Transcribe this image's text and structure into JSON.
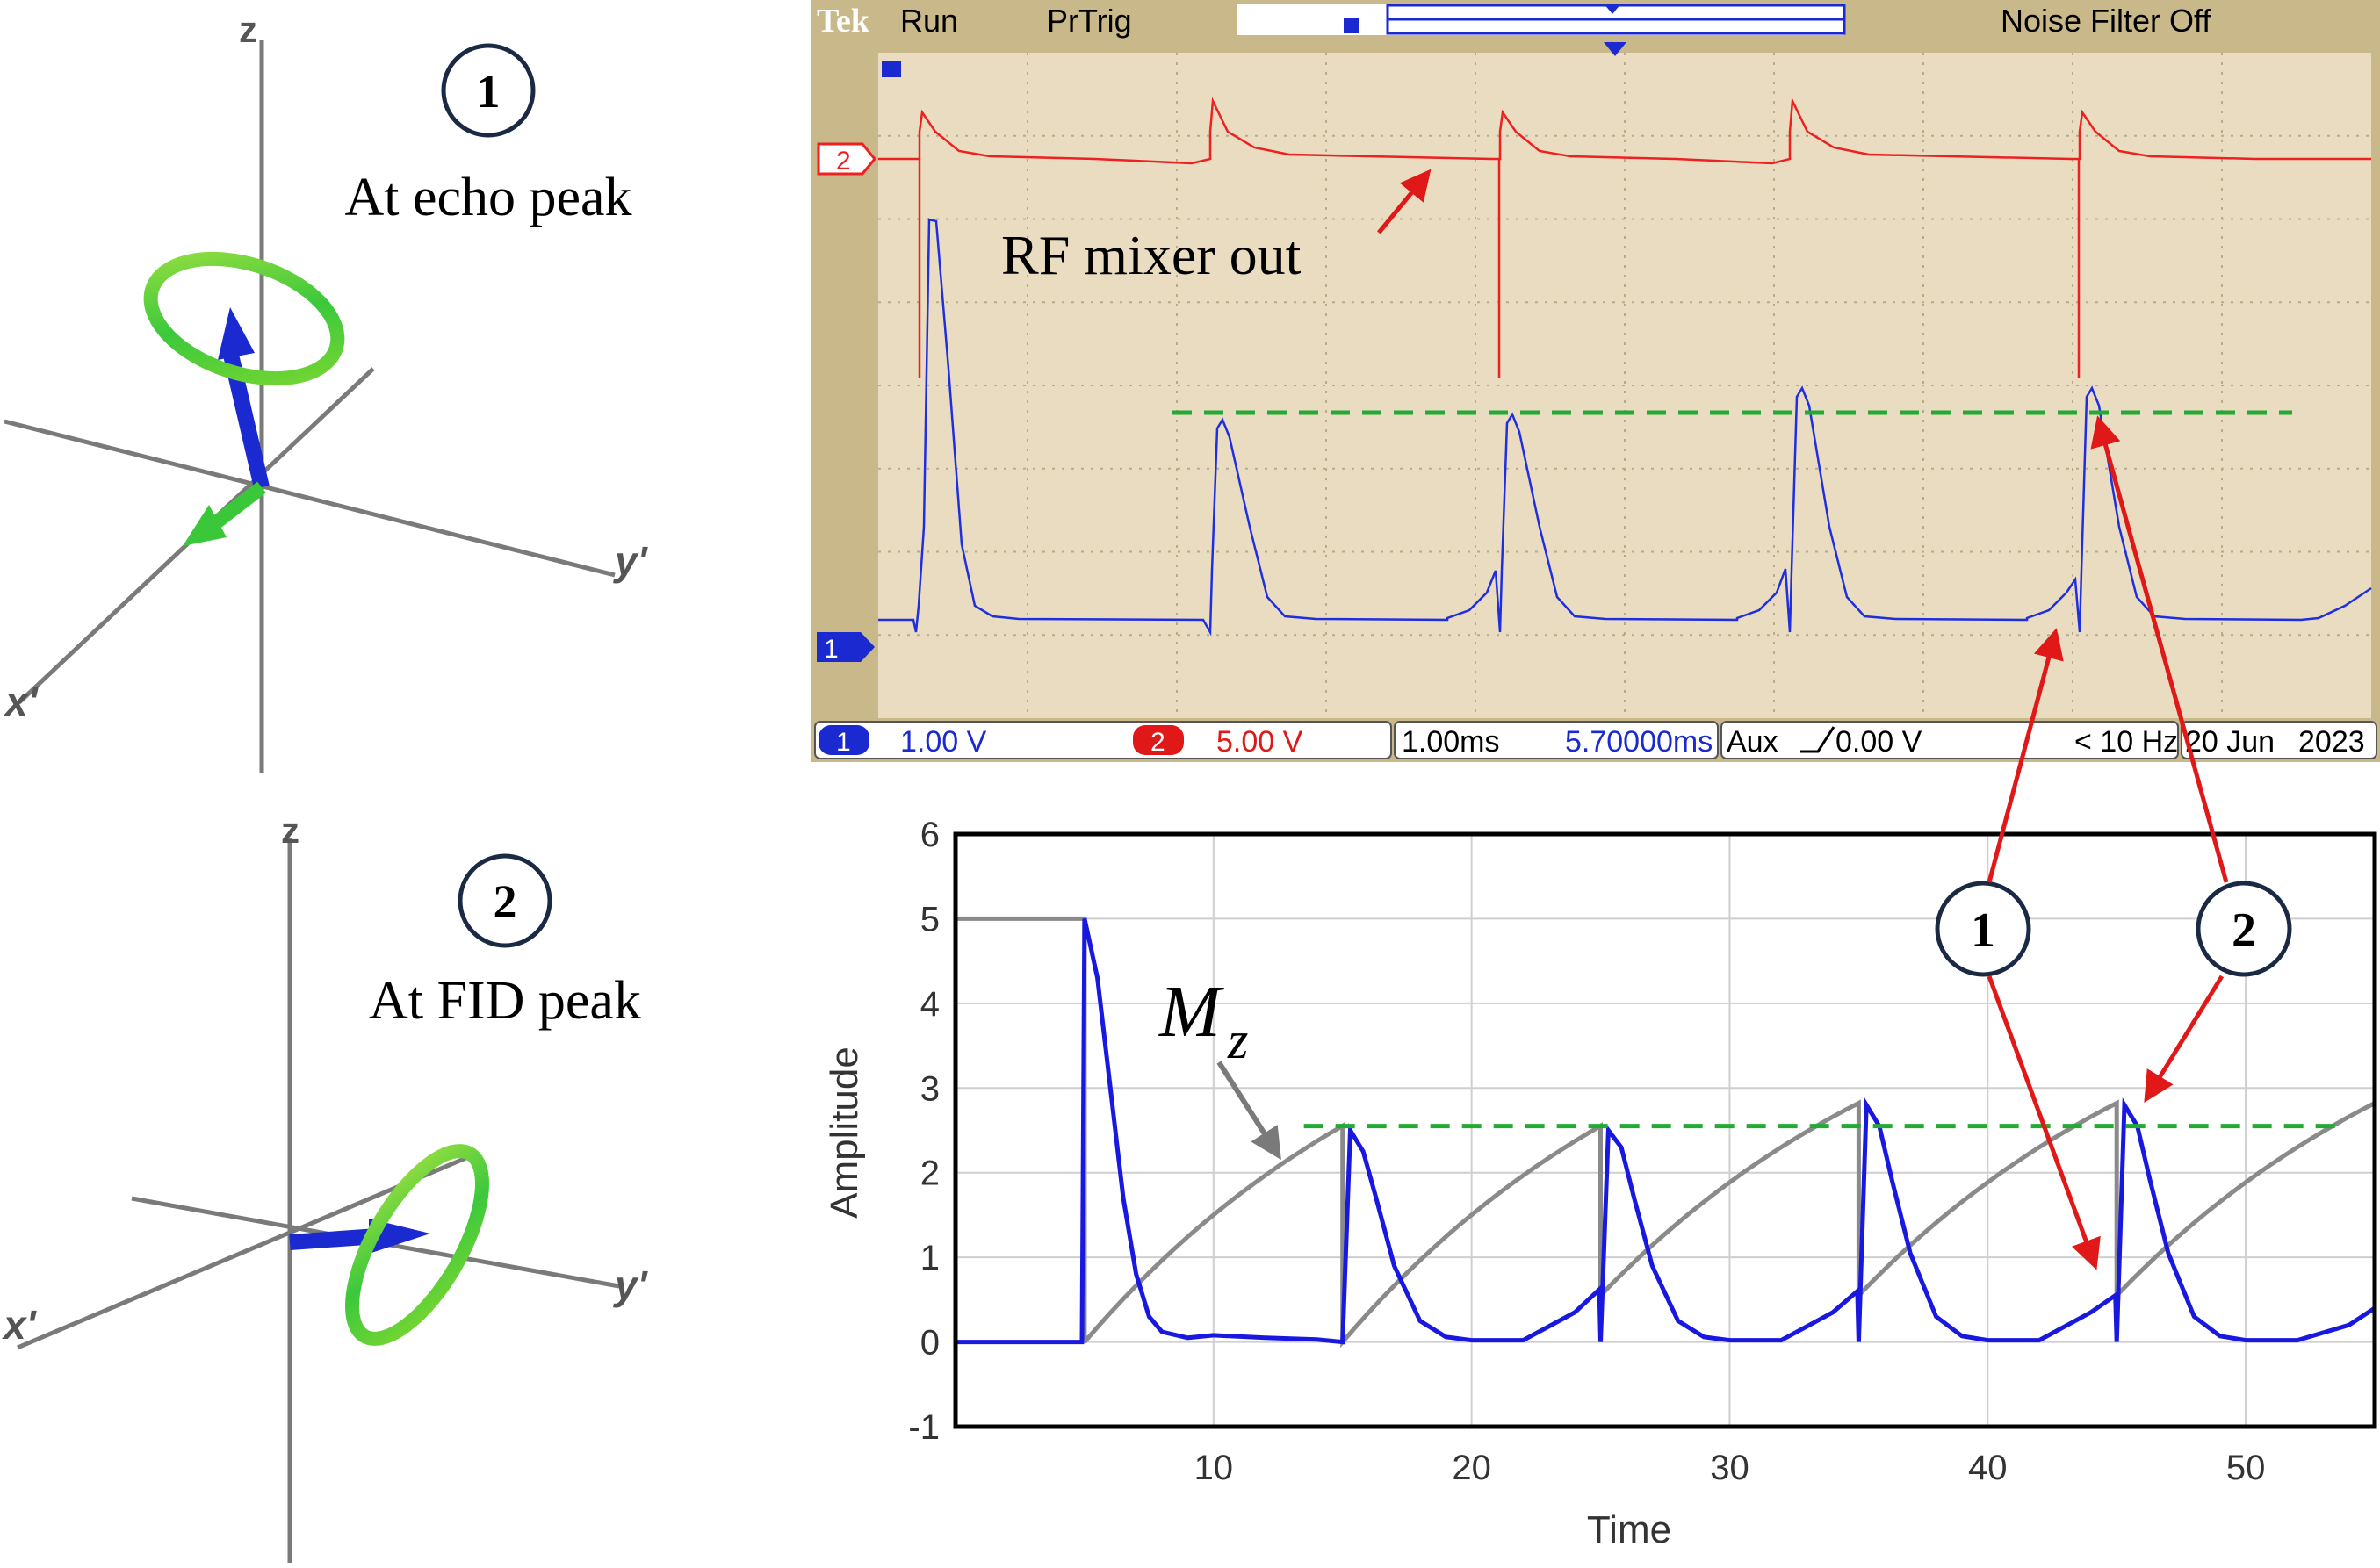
{
  "vector_panels": [
    {
      "marker": "1",
      "caption": "At echo peak",
      "axes": {
        "z": "z",
        "x": "x'",
        "y": "y'"
      }
    },
    {
      "marker": "2",
      "caption": "At FID peak",
      "axes": {
        "z": "z",
        "x": "x'",
        "y": "y'"
      }
    }
  ],
  "scope": {
    "brand": "Tek",
    "run_state": "Run",
    "trigger_mode": "PrTrig",
    "noise_filter": "Noise Filter Off",
    "annotation": "RF mixer out",
    "ch1_label": "1",
    "ch2_label": "2",
    "ch1_scale": "1.00 V",
    "ch2_scale": "5.00 V",
    "timebase": "1.00ms",
    "trigger_position": "5.70000ms",
    "trigger_source": "Aux",
    "trigger_level": "0.00 V",
    "frequency": "< 10 Hz",
    "date": "20 Jun",
    "year": "2023",
    "colors": {
      "frame": "#c8b88a",
      "screen": "#e9dcc0",
      "ch1": "#1f2fe0",
      "ch2": "#ee2020",
      "grid": "#b8ab8a"
    }
  },
  "plot_markers": [
    "1",
    "2"
  ],
  "chart_data": {
    "type": "line",
    "xlabel": "Time",
    "ylabel": "Amplitude",
    "mz_label": "M",
    "mz_subscript": "z",
    "xlim": [
      0,
      55
    ],
    "ylim": [
      -1,
      6
    ],
    "xticks": [
      10,
      20,
      30,
      40,
      50
    ],
    "yticks": [
      -1,
      0,
      1,
      2,
      3,
      4,
      5,
      6
    ],
    "grid": true,
    "reference_level": 2.55,
    "series": [
      {
        "color": "#1818e0",
        "x": [
          0,
          4.9,
          5.0,
          5.5,
          6.0,
          6.5,
          7.0,
          7.5,
          8.0,
          9.0,
          10,
          12,
          14,
          15.0,
          15.3,
          15.8,
          16.3,
          17,
          18,
          19,
          20,
          22,
          24,
          24.95,
          25.0,
          25.3,
          25.8,
          26.3,
          27,
          28,
          29,
          30,
          32,
          34,
          34.95,
          35.0,
          35.3,
          35.8,
          36.3,
          37,
          38,
          39,
          40,
          42,
          44,
          44.95,
          45.0,
          45.3,
          45.8,
          46.3,
          47,
          48,
          49,
          50,
          52,
          54,
          55
        ],
        "y": [
          0,
          0,
          5.0,
          4.3,
          3.0,
          1.7,
          0.8,
          0.3,
          0.12,
          0.05,
          0.08,
          0.05,
          0.03,
          0.0,
          2.5,
          2.25,
          1.7,
          0.9,
          0.25,
          0.06,
          0.02,
          0.02,
          0.35,
          0.62,
          0.0,
          2.5,
          2.3,
          1.7,
          0.9,
          0.25,
          0.06,
          0.02,
          0.02,
          0.35,
          0.6,
          0.0,
          2.8,
          2.55,
          1.9,
          1.05,
          0.3,
          0.07,
          0.02,
          0.02,
          0.35,
          0.55,
          0.0,
          2.8,
          2.55,
          1.9,
          1.05,
          0.3,
          0.07,
          0.02,
          0.02,
          0.2,
          0.4
        ]
      },
      {
        "color": "#8a8a8a",
        "x": [
          0,
          4.9,
          5.0,
          5.0,
          15.0,
          15.0,
          25.0,
          25.0,
          35.0,
          35.0,
          45.0,
          45.0,
          55
        ],
        "y": [
          5,
          5,
          5,
          0,
          2.5,
          0,
          2.5,
          0.55,
          2.85,
          0.55,
          2.85,
          0.55,
          2.6
        ]
      }
    ]
  }
}
